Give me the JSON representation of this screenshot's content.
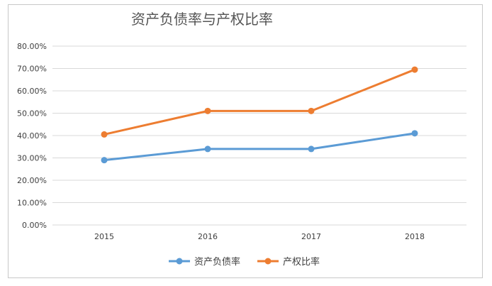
{
  "chart_data": {
    "type": "line",
    "title": "资产负债率与产权比率",
    "categories": [
      "2015",
      "2016",
      "2017",
      "2018"
    ],
    "yticks": [
      "0.00%",
      "10.00%",
      "20.00%",
      "30.00%",
      "40.00%",
      "50.00%",
      "60.00%",
      "70.00%",
      "80.00%"
    ],
    "ylim": [
      0,
      80
    ],
    "grid": true,
    "legend_position": "bottom",
    "series": [
      {
        "name": "资产负债率",
        "values": [
          29.0,
          34.0,
          34.0,
          41.0
        ],
        "color": "#5b9bd5"
      },
      {
        "name": "产权比率",
        "values": [
          40.5,
          51.0,
          51.0,
          69.5
        ],
        "color": "#ed7d31"
      }
    ]
  }
}
